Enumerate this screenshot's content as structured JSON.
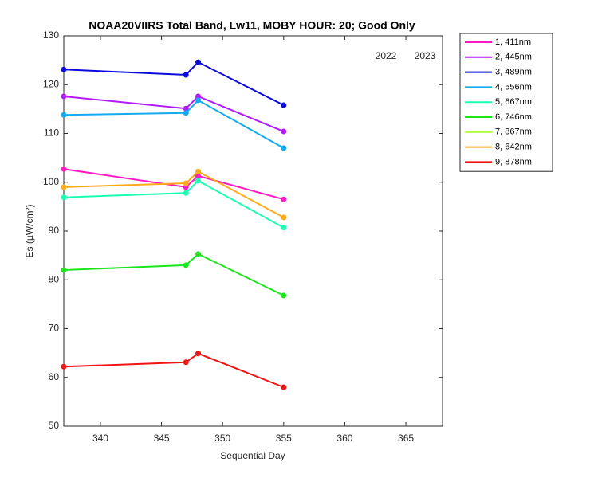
{
  "chart_data": {
    "type": "line",
    "title": "NOAA20VIIRS Total Band,  Lw11, MOBY HOUR: 20;  Good Only",
    "x_label": "Sequential Day",
    "y_label": "Es (µW/cm²)",
    "annotations": [
      "2022",
      "2023"
    ],
    "x": [
      337,
      347,
      348,
      355
    ],
    "xlim": [
      337,
      368
    ],
    "xticks": [
      340,
      345,
      350,
      355,
      360,
      365
    ],
    "ylim": [
      50,
      130
    ],
    "yticks": [
      50,
      60,
      70,
      80,
      90,
      100,
      110,
      120,
      130
    ],
    "grid": false,
    "legend": "outside-right",
    "series": [
      {
        "name": "1, 411nm",
        "color": "#ff1ac6",
        "values": [
          102.7,
          99.0,
          101.3,
          96.5
        ]
      },
      {
        "name": "2, 445nm",
        "color": "#b31aff",
        "values": [
          117.6,
          115.1,
          117.6,
          110.4
        ]
      },
      {
        "name": "3, 489nm",
        "color": "#0a0ae0",
        "values": [
          123.1,
          122.0,
          124.6,
          115.8
        ]
      },
      {
        "name": "4, 556nm",
        "color": "#14aaf0",
        "values": [
          113.8,
          114.2,
          116.8,
          107.0
        ]
      },
      {
        "name": "5, 667nm",
        "color": "#1affb4",
        "values": [
          96.9,
          97.8,
          100.3,
          90.7
        ]
      },
      {
        "name": "6, 746nm",
        "color": "#1ae61a",
        "values": [
          82.0,
          83.0,
          85.3,
          76.8
        ]
      },
      {
        "name": "7, 867nm",
        "color": "#aaff33",
        "values": [
          null,
          null,
          null,
          null
        ]
      },
      {
        "name": "8, 642nm",
        "color": "#ffaa1a",
        "values": [
          99.0,
          99.8,
          102.2,
          92.8
        ]
      },
      {
        "name": "9, 878nm",
        "color": "#f01414",
        "values": [
          62.2,
          63.1,
          64.9,
          58.0
        ]
      }
    ]
  }
}
